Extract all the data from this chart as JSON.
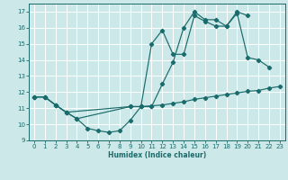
{
  "xlabel": "Humidex (Indice chaleur)",
  "xlim": [
    -0.5,
    23.5
  ],
  "ylim": [
    9,
    17.5
  ],
  "yticks": [
    9,
    10,
    11,
    12,
    13,
    14,
    15,
    16,
    17
  ],
  "xticks": [
    0,
    1,
    2,
    3,
    4,
    5,
    6,
    7,
    8,
    9,
    10,
    11,
    12,
    13,
    14,
    15,
    16,
    17,
    18,
    19,
    20,
    21,
    22,
    23
  ],
  "bg_color": "#cde8e8",
  "grid_color": "#ffffff",
  "line_color": "#1a6b6b",
  "line1_x": [
    0,
    1,
    2,
    3,
    4,
    5,
    6,
    7,
    8,
    9,
    10,
    11,
    12,
    13,
    14,
    15,
    16,
    17,
    18,
    19,
    20,
    21,
    22,
    23
  ],
  "line1_y": [
    11.7,
    11.7,
    11.2,
    10.75,
    10.35,
    9.75,
    9.6,
    9.5,
    9.6,
    10.25,
    11.1,
    11.15,
    11.2,
    11.3,
    11.4,
    11.55,
    11.65,
    11.75,
    11.85,
    11.95,
    12.05,
    12.1,
    12.25,
    12.35
  ],
  "line2_x": [
    0,
    1,
    2,
    3,
    4,
    9,
    10,
    11,
    12,
    13,
    14,
    15,
    16,
    17,
    18,
    19,
    20
  ],
  "line2_y": [
    11.7,
    11.7,
    11.2,
    10.75,
    10.35,
    11.1,
    11.1,
    15.0,
    15.85,
    14.35,
    14.35,
    16.75,
    16.4,
    16.1,
    16.1,
    17.0,
    16.75
  ],
  "line3_x": [
    0,
    1,
    2,
    3,
    9,
    10,
    11,
    12,
    13,
    14,
    15,
    16,
    17,
    18,
    19,
    20,
    21,
    22
  ],
  "line3_y": [
    11.7,
    11.7,
    11.2,
    10.75,
    11.1,
    11.1,
    11.1,
    12.5,
    13.85,
    16.0,
    17.0,
    16.5,
    16.5,
    16.1,
    16.9,
    14.15,
    14.0,
    13.55
  ]
}
